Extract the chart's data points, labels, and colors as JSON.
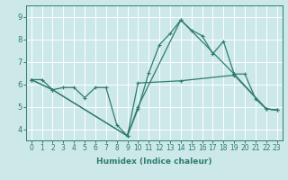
{
  "xlabel": "Humidex (Indice chaleur)",
  "bg_color": "#cce8e8",
  "grid_color": "#ffffff",
  "line_color": "#2e7d6e",
  "xlim": [
    -0.5,
    23.5
  ],
  "ylim": [
    3.5,
    9.5
  ],
  "xticks": [
    0,
    1,
    2,
    3,
    4,
    5,
    6,
    7,
    8,
    9,
    10,
    11,
    12,
    13,
    14,
    15,
    16,
    17,
    18,
    19,
    20,
    21,
    22,
    23
  ],
  "yticks": [
    4,
    5,
    6,
    7,
    8,
    9
  ],
  "line1_x": [
    0,
    1,
    2,
    3,
    4,
    5,
    6,
    7,
    8,
    9,
    10,
    11,
    12,
    13,
    14,
    15,
    16,
    17,
    18,
    19,
    20,
    21,
    22,
    23
  ],
  "line1_y": [
    6.2,
    6.2,
    5.75,
    5.85,
    5.85,
    5.4,
    5.85,
    5.85,
    4.2,
    3.7,
    4.9,
    6.5,
    7.75,
    8.25,
    8.85,
    8.4,
    8.15,
    7.35,
    7.9,
    6.45,
    6.45,
    5.35,
    4.9,
    4.85
  ],
  "line2_x": [
    0,
    2,
    9,
    10,
    14,
    19,
    22,
    23
  ],
  "line2_y": [
    6.2,
    5.75,
    3.7,
    5.0,
    8.85,
    6.45,
    4.9,
    4.85
  ],
  "line3_x": [
    0,
    2,
    9,
    10,
    14,
    19,
    22,
    23
  ],
  "line3_y": [
    6.2,
    5.75,
    3.7,
    6.05,
    6.15,
    6.4,
    4.9,
    4.85
  ],
  "markersize": 2.5,
  "linewidth": 0.9,
  "xlabel_fontsize": 6.5,
  "tick_fontsize": 5.5
}
